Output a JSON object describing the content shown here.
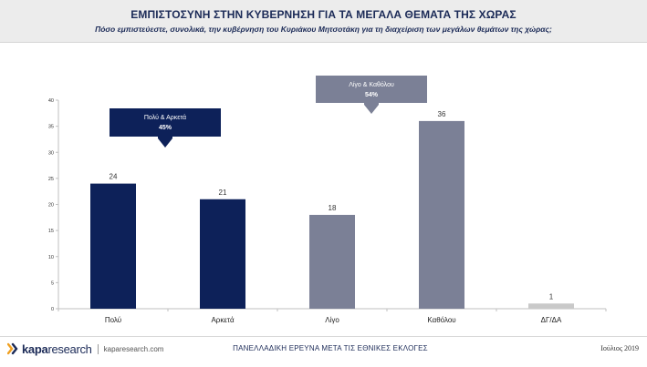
{
  "header": {
    "title": "ΕΜΠΙΣΤΟΣΥΝΗ ΣΤΗΝ ΚΥΒΕΡΝΗΣΗ ΓΙΑ ΤΑ ΜΕΓΑΛΑ ΘΕΜΑΤΑ ΤΗΣ ΧΩΡΑΣ",
    "subtitle": "Πόσο εμπιστεύεστε, συνολικά, την κυβέρνηση του Κυριάκου Μητσοτάκη για τη διαχείριση των μεγάλων θεμάτων της χώρας;"
  },
  "chart_data": {
    "type": "bar",
    "categories": [
      "Πολύ",
      "Αρκετά",
      "Λίγο",
      "Καθόλου",
      "ΔΓ/ΔΑ"
    ],
    "values": [
      24,
      21,
      18,
      36,
      1
    ],
    "ylim": [
      0,
      40
    ],
    "yticks": [
      0,
      5,
      10,
      15,
      20,
      25,
      30,
      35,
      40
    ],
    "grid": false,
    "bar_colors": [
      "#0d2159",
      "#0d2159",
      "#7b8096",
      "#7b8096",
      "#c9c9c9"
    ],
    "callouts": [
      {
        "label": "Πολύ & Αρκετά",
        "value": "45%",
        "color": "#0d2159"
      },
      {
        "label": "Λίγο & Καθόλου",
        "value": "54%",
        "color": "#7b8096"
      }
    ]
  },
  "footer": {
    "logo_bold": "kapa",
    "logo_light": "research",
    "url": "kaparesearch.com",
    "center_text": "ΠΑΝΕΛΛΑΔΙΚΗ ΕΡΕΥΝΑ ΜΕΤΑ ΤΙΣ ΕΘΝΙΚΕΣ ΕΚΛΟΓΕΣ",
    "date": "Ιούλιος 2019"
  },
  "colors": {
    "navy": "#0d2159",
    "gray": "#7b8096",
    "light_gray": "#c9c9c9",
    "logo_orange": "#f0a020"
  }
}
